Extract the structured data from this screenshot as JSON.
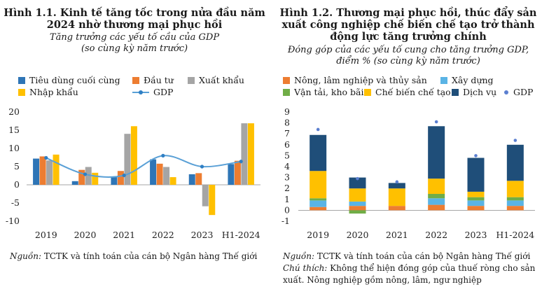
{
  "panels": [
    {
      "title_line1": "Hình 1.1. Kinh tế tăng tốc trong nửa đầu năm",
      "title_line2": "2024 nhờ thương mại phục hồi",
      "subtitle_line1": "Tăng trưởng các yếu tố cầu của GDP",
      "subtitle_line2": "(so cùng kỳ năm trước)",
      "source_label": "Nguồn:",
      "source_text": " TCTK và tính toán của cán bộ Ngân hàng Thế giới"
    },
    {
      "title_line1": "Hình 1.2. Thương mại phục hồi, thúc đẩy sản",
      "title_line2": "xuất công nghiệp chế biến chế tạo trở thành",
      "title_line3": "động lực tăng trưởng chính",
      "subtitle_line1": "Đóng góp của các yếu tố cung cho tăng trưởng GDP,",
      "subtitle_line2": "điểm % (so cùng kỳ năm trước)",
      "source_label": "Nguồn:",
      "source_text": " TCTK và tính toán của cán bộ Ngân hàng Thế giới",
      "note_label": "Chú thích:",
      "note_text": " Không thể hiện đóng góp của thuế ròng cho sản",
      "note_text2": "xuất. Nông nghiệp gồm nông, lâm, ngư nghiệp"
    }
  ],
  "chart_data": [
    {
      "type": "bar",
      "title": "Kinh tế tăng tốc trong nửa đầu năm 2024 nhờ thương mại phục hồi",
      "categories": [
        "2019",
        "2020",
        "2021",
        "2022",
        "2023",
        "H1-2024"
      ],
      "ylim": [
        -10,
        20
      ],
      "yticks": [
        "-10",
        "-5",
        "0",
        "5",
        "10",
        "15",
        "20"
      ],
      "yticks_values": [
        -10,
        -5,
        0,
        5,
        10,
        15,
        20
      ],
      "series": [
        {
          "name": "Tiêu dùng cuối cùng",
          "color": "#2e75b6",
          "values": [
            7.2,
            1.0,
            2.1,
            7.0,
            2.9,
            5.7
          ]
        },
        {
          "name": "Đầu tư",
          "color": "#ed7d31",
          "values": [
            7.8,
            4.1,
            3.8,
            5.8,
            3.2,
            6.6
          ]
        },
        {
          "name": "Xuất khẩu",
          "color": "#a5a5a5",
          "values": [
            6.7,
            4.9,
            14.0,
            4.9,
            -5.9,
            16.9
          ]
        },
        {
          "name": "Nhập khẩu",
          "color": "#ffc000",
          "values": [
            8.3,
            3.3,
            16.1,
            2.1,
            -8.3,
            16.9
          ]
        }
      ],
      "line_series": {
        "name": "GDP",
        "color": "#5aa0d6",
        "values": [
          7.4,
          2.9,
          2.6,
          8.0,
          5.0,
          6.4
        ]
      }
    },
    {
      "type": "bar",
      "stacked": true,
      "title": "Thương mại phục hồi, thúc đẩy sản xuất công nghiệp chế biến chế tạo trở thành động lực tăng trưởng chính",
      "categories": [
        "2019",
        "2020",
        "2021",
        "2022",
        "2023",
        "H1-2024"
      ],
      "ylim": [
        -1,
        9
      ],
      "yticks": [
        "-1",
        "0",
        "1",
        "2",
        "3",
        "4",
        "5",
        "6",
        "7",
        "8",
        "9"
      ],
      "yticks_values": [
        -1,
        0,
        1,
        2,
        3,
        4,
        5,
        6,
        7,
        8,
        9
      ],
      "series": [
        {
          "name": "Nông, lâm nghiệp và thủy sản",
          "color": "#ed7d31",
          "values": [
            0.3,
            0.4,
            0.4,
            0.5,
            0.4,
            0.4
          ]
        },
        {
          "name": "Xây dựng",
          "color": "#5ab4e5",
          "values": [
            0.6,
            0.4,
            0.0,
            0.6,
            0.5,
            0.5
          ]
        },
        {
          "name": "Vận tải, kho bãi",
          "color": "#70ad47",
          "values": [
            0.2,
            -0.3,
            0.0,
            0.4,
            0.3,
            0.3
          ]
        },
        {
          "name": "Chế biến chế tạo",
          "color": "#ffc000",
          "values": [
            2.5,
            1.2,
            1.6,
            1.4,
            0.5,
            1.5
          ]
        },
        {
          "name": "Dịch vụ",
          "color": "#1f4e79",
          "values": [
            3.3,
            1.0,
            0.5,
            4.8,
            3.1,
            3.3
          ]
        }
      ],
      "dot_series": {
        "name": "GDP",
        "color": "#5b7fd0",
        "values": [
          7.4,
          2.9,
          2.6,
          8.1,
          5.0,
          6.4
        ]
      }
    }
  ]
}
